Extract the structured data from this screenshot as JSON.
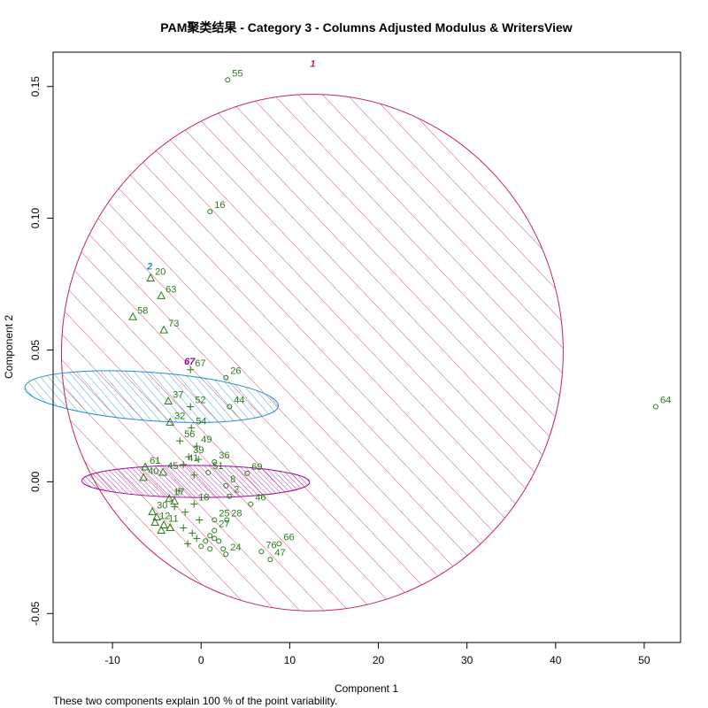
{
  "chart_data": {
    "type": "scatter",
    "title": "PAM聚类结果 - Category  3  - Columns  Adjusted Modulus  &  WritersView",
    "xlabel": "Component 1",
    "ylabel": "Component 2",
    "footnote": "These two components explain 100 % of the point variability.",
    "xlim": [
      -16.7,
      54.1
    ],
    "ylim": [
      -0.061,
      0.163
    ],
    "xticks": [
      -10,
      0,
      10,
      20,
      30,
      40,
      50
    ],
    "yticks": [
      -0.05,
      0.0,
      0.05,
      0.1,
      0.15
    ],
    "grid": false,
    "colors": {
      "point": "#2a7a1a",
      "cluster1": "#c4264e",
      "cluster2": "#1e8fcf",
      "cluster3": "#9a0a9a"
    },
    "clusters": [
      {
        "id": "1",
        "label": "1",
        "color": "#c4264e",
        "cx": 12.55,
        "cy": 0.04902,
        "rx": 29.15,
        "ry": 0.0952,
        "angle": -88.5
      },
      {
        "id": "2",
        "label": "2",
        "color": "#1e8fcf",
        "cx": -5.59,
        "cy": 0.03231,
        "rx": 2.73,
        "ry": 0.0482,
        "angle": -85.8
      },
      {
        "id": "3",
        "label": "67",
        "color": "#9a0a9a",
        "cx": -0.61,
        "cy": 0.00012,
        "rx": 1.81,
        "ry": 0.0432,
        "angle": -89.6
      }
    ],
    "points": [
      {
        "label": "55",
        "x": 3.0,
        "y": 0.1525,
        "marker": "circle"
      },
      {
        "label": "16",
        "x": 1.0,
        "y": 0.1025,
        "marker": "circle"
      },
      {
        "label": "64",
        "x": 51.3,
        "y": 0.0285,
        "marker": "circle"
      },
      {
        "label": "26",
        "x": 2.8,
        "y": 0.0395,
        "marker": "circle"
      },
      {
        "label": "44",
        "x": 3.2,
        "y": 0.0285,
        "marker": "circle"
      },
      {
        "label": "69",
        "x": 5.2,
        "y": 0.0032,
        "marker": "circle"
      },
      {
        "label": "36",
        "x": 1.5,
        "y": 0.0075,
        "marker": "circle"
      },
      {
        "label": "51",
        "x": 0.8,
        "y": 0.0035,
        "marker": "circle"
      },
      {
        "label": "8",
        "x": 2.8,
        "y": -0.0015,
        "marker": "circle"
      },
      {
        "label": "2",
        "x": 3.2,
        "y": -0.0055,
        "marker": "circle"
      },
      {
        "label": "46",
        "x": 5.6,
        "y": -0.0085,
        "marker": "circle"
      },
      {
        "label": "25",
        "x": 1.5,
        "y": -0.0145,
        "marker": "circle"
      },
      {
        "label": "28",
        "x": 2.9,
        "y": -0.0145,
        "marker": "circle"
      },
      {
        "label": "27",
        "x": 1.5,
        "y": -0.0185,
        "marker": "circle"
      },
      {
        "label": "66",
        "x": 8.8,
        "y": -0.0235,
        "marker": "circle"
      },
      {
        "label": "76",
        "x": 6.8,
        "y": -0.0265,
        "marker": "circle"
      },
      {
        "label": "47",
        "x": 7.8,
        "y": -0.0295,
        "marker": "circle"
      },
      {
        "label": "24",
        "x": 2.8,
        "y": -0.0275,
        "marker": "circle"
      },
      {
        "label": "20",
        "x": -5.7,
        "y": 0.0772,
        "marker": "triangle"
      },
      {
        "label": "63",
        "x": -4.5,
        "y": 0.0705,
        "marker": "triangle"
      },
      {
        "label": "58",
        "x": -7.7,
        "y": 0.0625,
        "marker": "triangle"
      },
      {
        "label": "73",
        "x": -4.2,
        "y": 0.0575,
        "marker": "triangle"
      },
      {
        "label": "37",
        "x": -3.7,
        "y": 0.0305,
        "marker": "triangle"
      },
      {
        "label": "32",
        "x": -3.5,
        "y": 0.0225,
        "marker": "triangle"
      },
      {
        "label": "61",
        "x": -6.3,
        "y": 0.0055,
        "marker": "triangle"
      },
      {
        "label": "40",
        "x": -6.5,
        "y": 0.0015,
        "marker": "triangle"
      },
      {
        "label": "45",
        "x": -4.3,
        "y": 0.0035,
        "marker": "triangle"
      },
      {
        "label": "17",
        "x": -3.6,
        "y": -0.0065,
        "marker": "triangle"
      },
      {
        "label": "30",
        "x": -5.5,
        "y": -0.0115,
        "marker": "triangle"
      },
      {
        "label": "12",
        "x": -5.2,
        "y": -0.0155,
        "marker": "triangle"
      },
      {
        "label": "11",
        "x": -4.2,
        "y": -0.0165,
        "marker": "triangle"
      },
      {
        "label": "52",
        "x": -1.2,
        "y": 0.0285,
        "marker": "plus"
      },
      {
        "label": "54",
        "x": -1.1,
        "y": 0.0205,
        "marker": "plus"
      },
      {
        "label": "56",
        "x": -2.4,
        "y": 0.0155,
        "marker": "plus"
      },
      {
        "label": "49",
        "x": -0.5,
        "y": 0.0135,
        "marker": "plus"
      },
      {
        "label": "39",
        "x": -1.4,
        "y": 0.0095,
        "marker": "plus"
      },
      {
        "label": "41",
        "x": -2.0,
        "y": 0.0065,
        "marker": "plus"
      },
      {
        "label": "18",
        "x": -0.8,
        "y": -0.0085,
        "marker": "plus"
      },
      {
        "label": "67",
        "x": -1.2,
        "y": 0.0425,
        "marker": "plus"
      }
    ],
    "cluster_markers": [
      {
        "x": 1.5,
        "y": -0.0215,
        "marker": "circle",
        "color": "#2a7a1a"
      },
      {
        "x": 2.0,
        "y": -0.0225,
        "marker": "circle",
        "color": "#2a7a1a"
      },
      {
        "x": 1.0,
        "y": -0.0205,
        "marker": "circle",
        "color": "#2a7a1a"
      },
      {
        "x": 0.5,
        "y": -0.0225,
        "marker": "circle",
        "color": "#2a7a1a"
      },
      {
        "x": 0.0,
        "y": -0.0245,
        "marker": "circle",
        "color": "#2a7a1a"
      },
      {
        "x": 2.5,
        "y": -0.0255,
        "marker": "circle",
        "color": "#2a7a1a"
      },
      {
        "x": 1.0,
        "y": -0.0255,
        "marker": "circle",
        "color": "#2a7a1a"
      },
      {
        "x": -0.5,
        "y": -0.0215,
        "marker": "plus",
        "color": "#2a7a1a"
      },
      {
        "x": -1.0,
        "y": -0.0195,
        "marker": "plus",
        "color": "#2a7a1a"
      },
      {
        "x": -1.5,
        "y": -0.0235,
        "marker": "plus",
        "color": "#2a7a1a"
      },
      {
        "x": -2.0,
        "y": -0.0175,
        "marker": "plus",
        "color": "#2a7a1a"
      },
      {
        "x": -0.2,
        "y": -0.0145,
        "marker": "plus",
        "color": "#2a7a1a"
      },
      {
        "x": -1.8,
        "y": -0.0115,
        "marker": "plus",
        "color": "#2a7a1a"
      },
      {
        "x": -3.0,
        "y": -0.0095,
        "marker": "plus",
        "color": "#2a7a1a"
      },
      {
        "x": -2.5,
        "y": -0.0035,
        "marker": "plus",
        "color": "#2a7a1a"
      },
      {
        "x": -0.8,
        "y": 0.0025,
        "marker": "plus",
        "color": "#2a7a1a"
      },
      {
        "x": -0.3,
        "y": 0.0085,
        "marker": "plus",
        "color": "#2a7a1a"
      },
      {
        "x": -4.5,
        "y": -0.0185,
        "marker": "triangle",
        "color": "#2a7a1a"
      },
      {
        "x": -3.5,
        "y": -0.0175,
        "marker": "triangle",
        "color": "#2a7a1a"
      },
      {
        "x": -5.0,
        "y": -0.0135,
        "marker": "triangle",
        "color": "#2a7a1a"
      },
      {
        "x": -3.0,
        "y": -0.0075,
        "marker": "triangle",
        "color": "#2a7a1a"
      }
    ]
  }
}
